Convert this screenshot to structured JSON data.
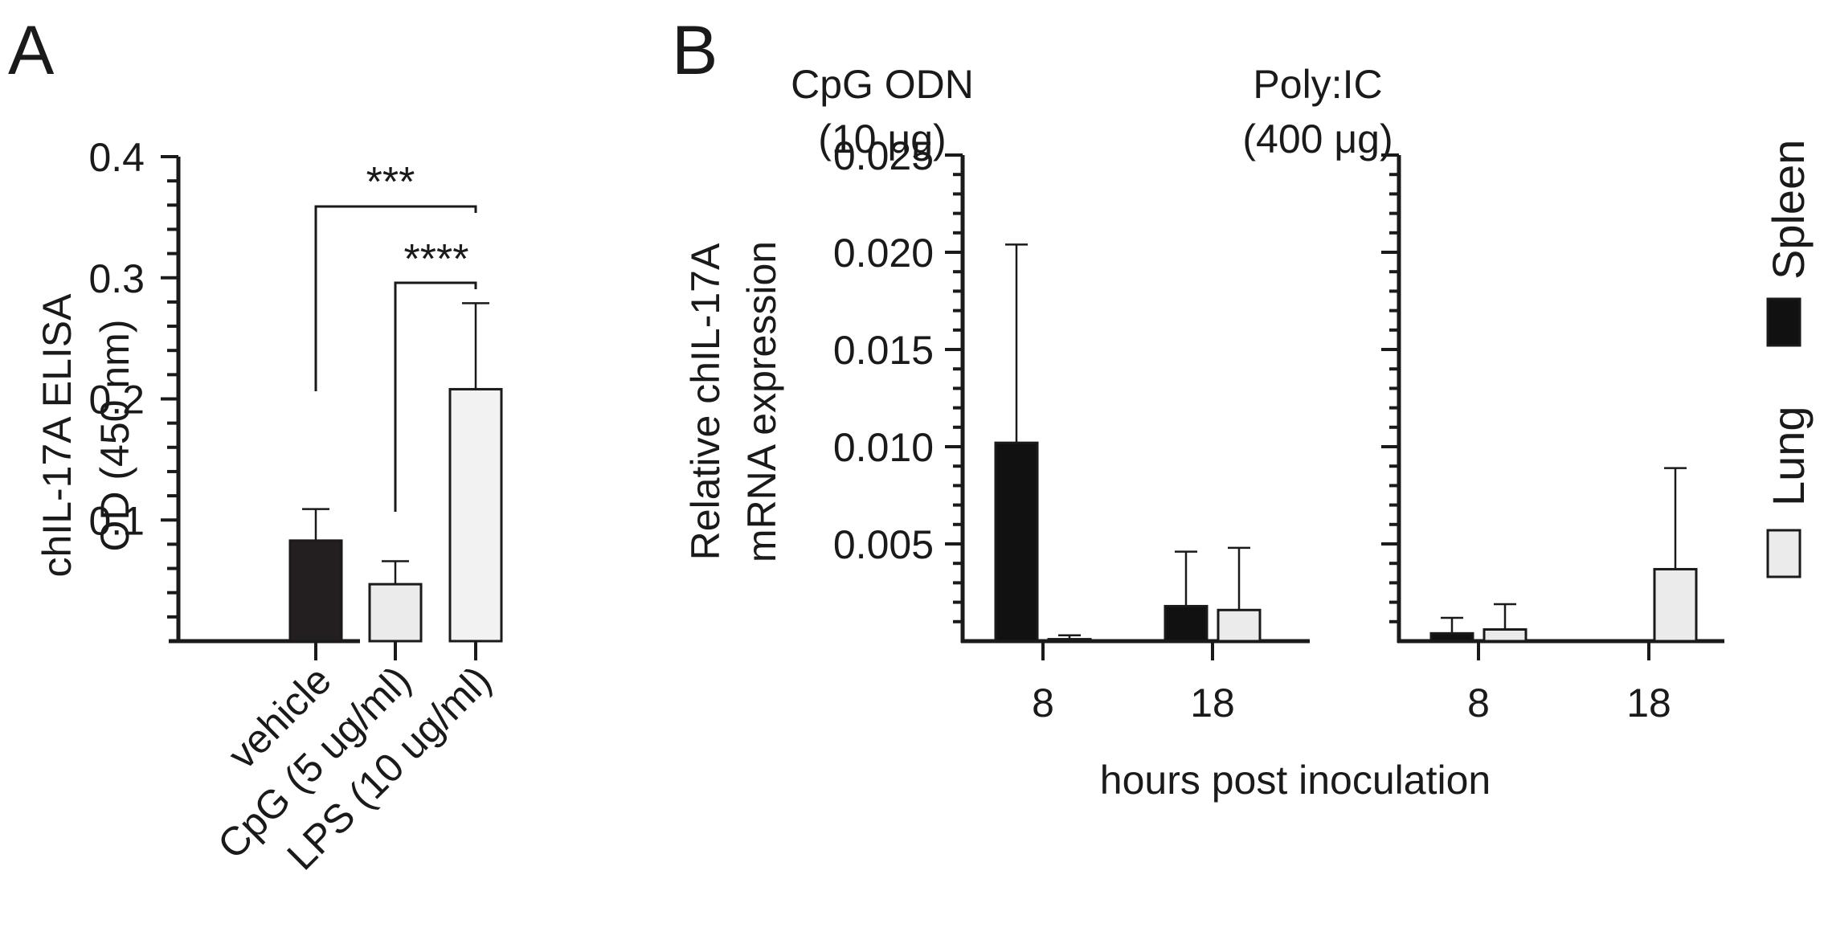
{
  "colors": {
    "spleen": "#111111",
    "lung": "#ebebeb",
    "vehicle": "#231f20",
    "cpg": "#ebebeb",
    "lps": "#f2f2f2",
    "ink": "#1a1a1a"
  },
  "chart_data": [
    {
      "panel": "A",
      "type": "bar",
      "ylabel": [
        "chIL-17A  ELISA",
        "OD (450 nm)"
      ],
      "ylim": [
        0,
        0.4
      ],
      "yticks": [
        "0.1",
        "0.2",
        "0.3",
        "0.4"
      ],
      "categories": [
        "vehicle",
        "CpG (5 ug/ml)",
        "LPS (10 ug/ml)"
      ],
      "values": [
        0.083,
        0.047,
        0.208
      ],
      "errors": [
        0.026,
        0.019,
        0.071
      ],
      "significance": [
        {
          "from": "vehicle",
          "to": "LPS (10 ug/ml)",
          "label": "***"
        },
        {
          "from": "CpG (5 ug/ml)",
          "to": "LPS (10 ug/ml)",
          "label": "****"
        }
      ]
    },
    {
      "panel": "B",
      "type": "bar",
      "ylabel": [
        "Relative chIL-17A",
        "mRNA expression"
      ],
      "xlabel": "hours post inoculation",
      "ylim": [
        0,
        0.025
      ],
      "yticks": [
        "0.005",
        "0.010",
        "0.015",
        "0.020",
        "0.025"
      ],
      "legend": [
        {
          "name": "Spleen",
          "color_key": "spleen"
        },
        {
          "name": "Lung",
          "color_key": "lung"
        }
      ],
      "subplots": [
        {
          "title": [
            "CpG ODN",
            "(10 μg)"
          ],
          "categories": [
            "8",
            "18"
          ],
          "series": [
            {
              "name": "Spleen",
              "values": [
                0.0102,
                0.0018
              ],
              "errors": [
                0.0102,
                0.0028
              ]
            },
            {
              "name": "Lung",
              "values": [
                0.0001,
                0.0016
              ],
              "errors": [
                0.0002,
                0.0032
              ]
            }
          ]
        },
        {
          "title": [
            "Poly:IC",
            "(400 μg)"
          ],
          "categories": [
            "8",
            "18"
          ],
          "series": [
            {
              "name": "Spleen",
              "values": [
                0.0004,
                0.0
              ],
              "errors": [
                0.0008,
                0.0
              ]
            },
            {
              "name": "Lung",
              "values": [
                0.0006,
                0.0037
              ],
              "errors": [
                0.0013,
                0.0052
              ]
            }
          ]
        }
      ]
    }
  ],
  "labels": {
    "panel_a": "A",
    "panel_b": "B"
  }
}
